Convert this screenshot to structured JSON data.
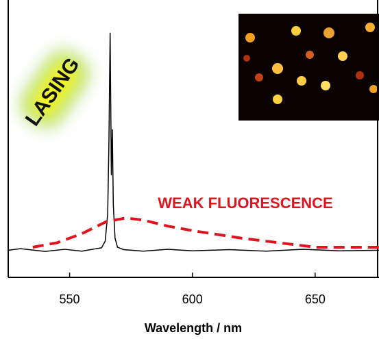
{
  "chart_data": {
    "type": "line",
    "x_label": "Wavelength / nm",
    "xlim": [
      525,
      676
    ],
    "xticks": [
      550,
      600,
      650
    ],
    "ylim": [
      -9,
      83
    ],
    "annotations": [
      "LASING",
      "WEAK FLUORESCENCE"
    ],
    "series": [
      {
        "color": "#000000",
        "dashed": false,
        "x": [
          525,
          530,
          540,
          548,
          555,
          560,
          563,
          564.5,
          565.5,
          566,
          566.5,
          567,
          567.4,
          567.8,
          568.5,
          569.5,
          572,
          580,
          590,
          600,
          615,
          630,
          645,
          660,
          676
        ],
        "values": [
          0,
          0.5,
          -0.4,
          0.3,
          -0.3,
          0.4,
          0.8,
          3,
          12,
          35,
          72,
          25,
          40,
          15,
          4,
          1,
          0.2,
          -0.3,
          0.3,
          -0.2,
          0.2,
          -0.3,
          0.3,
          -0.2,
          0
        ]
      },
      {
        "color": "#e0141e",
        "dashed": true,
        "x": [
          535,
          545,
          555,
          565,
          573,
          580,
          590,
          600,
          620,
          640,
          650,
          676
        ],
        "values": [
          1,
          2.5,
          5.5,
          9.5,
          10.7,
          10,
          8,
          6.5,
          4,
          2,
          1,
          1
        ]
      }
    ]
  }
}
